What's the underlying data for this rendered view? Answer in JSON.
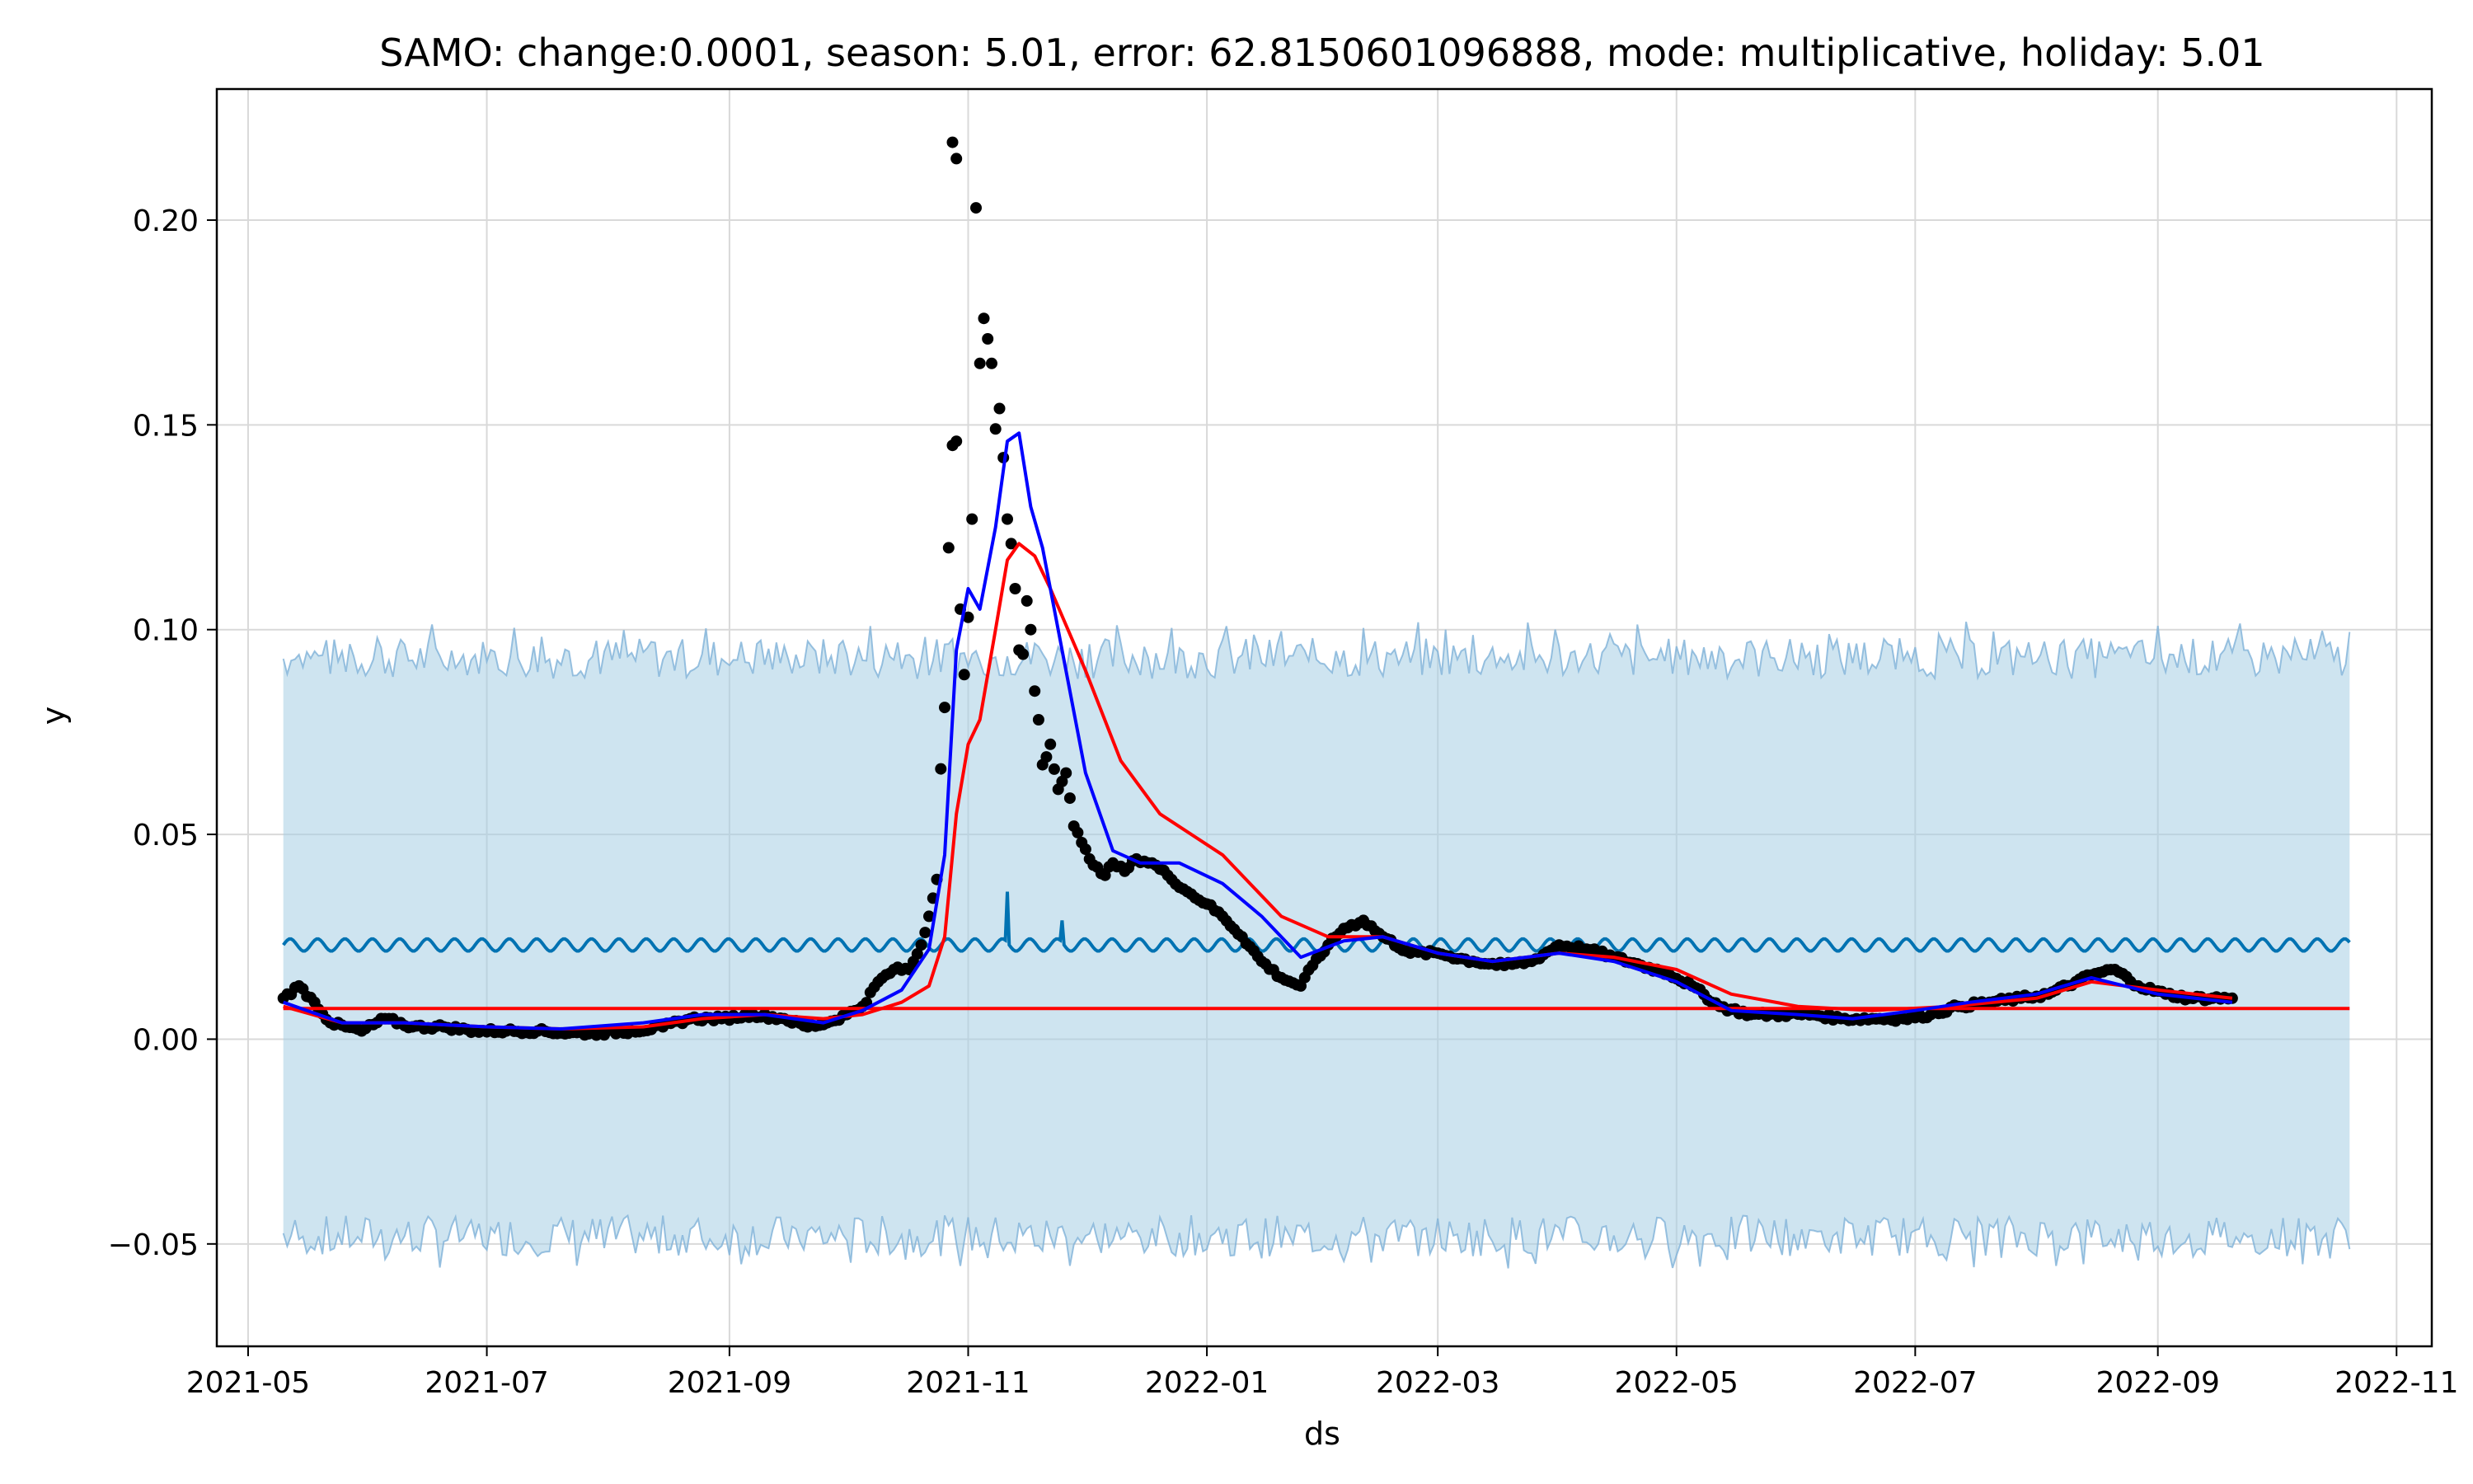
{
  "chart_data": {
    "type": "line",
    "title": "SAMO: change:0.0001, season: 5.01, error: 62.8150601096888, mode: multiplicative, holiday: 5.01",
    "xlabel": "ds",
    "ylabel": "y",
    "xlim": [
      "2021-04-23",
      "2022-11-10"
    ],
    "ylim": [
      -0.075,
      0.232
    ],
    "grid": true,
    "x_ticks": [
      "2021-05",
      "2021-07",
      "2021-09",
      "2021-11",
      "2022-01",
      "2022-03",
      "2022-05",
      "2022-07",
      "2022-09",
      "2022-11"
    ],
    "y_ticks": [
      -0.05,
      0.0,
      0.05,
      0.1,
      0.15,
      0.2
    ],
    "y_tick_labels": [
      "−0.05",
      "0.00",
      "0.05",
      "0.10",
      "0.15",
      "0.20"
    ],
    "colors": {
      "observed": "#000000",
      "fit_blue": "#0000ff",
      "trend_red": "#ff0000",
      "seasonal": "#0072b2",
      "interval_fill": "#a6cee3",
      "interval_edge": "#7fb2d8",
      "grid": "#d9d9d9"
    },
    "series": [
      {
        "role": "uncertainty_interval",
        "x": [
          "2021-05-10",
          "2022-10-20"
        ],
        "upper_base": 0.093,
        "lower_base": -0.048
      },
      {
        "role": "seasonal_component",
        "x_range": [
          "2021-05-10",
          "2022-10-20"
        ],
        "base": 0.023,
        "amplitude": 0.0015,
        "period_days": 7,
        "spikes": [
          {
            "x": "2021-11-11",
            "y": 0.036
          },
          {
            "x": "2021-11-25",
            "y": 0.029
          }
        ]
      },
      {
        "role": "baseline_trend",
        "x": [
          "2021-05-10",
          "2022-10-20"
        ],
        "y": [
          0.0075,
          0.0075
        ]
      },
      {
        "role": "blue_fit",
        "x": [
          "2021-05-10",
          "2021-05-25",
          "2021-06-10",
          "2021-07-01",
          "2021-07-20",
          "2021-08-10",
          "2021-08-25",
          "2021-09-10",
          "2021-09-25",
          "2021-10-05",
          "2021-10-15",
          "2021-10-22",
          "2021-10-26",
          "2021-10-29",
          "2021-11-01",
          "2021-11-04",
          "2021-11-08",
          "2021-11-11",
          "2021-11-14",
          "2021-11-17",
          "2021-11-20",
          "2021-11-25",
          "2021-12-01",
          "2021-12-08",
          "2021-12-15",
          "2021-12-25",
          "2022-01-05",
          "2022-01-15",
          "2022-01-25",
          "2022-02-05",
          "2022-02-15",
          "2022-03-01",
          "2022-03-15",
          "2022-04-01",
          "2022-04-15",
          "2022-05-01",
          "2022-05-15",
          "2022-06-01",
          "2022-06-15",
          "2022-07-01",
          "2022-07-15",
          "2022-08-01",
          "2022-08-15",
          "2022-09-01",
          "2022-09-20"
        ],
        "y": [
          0.009,
          0.004,
          0.004,
          0.003,
          0.0025,
          0.004,
          0.006,
          0.006,
          0.004,
          0.007,
          0.012,
          0.022,
          0.045,
          0.095,
          0.11,
          0.105,
          0.125,
          0.146,
          0.148,
          0.13,
          0.12,
          0.095,
          0.065,
          0.046,
          0.043,
          0.043,
          0.038,
          0.03,
          0.02,
          0.024,
          0.025,
          0.021,
          0.019,
          0.021,
          0.019,
          0.014,
          0.007,
          0.006,
          0.005,
          0.007,
          0.009,
          0.011,
          0.015,
          0.011,
          0.009
        ]
      },
      {
        "role": "red_trend_fit",
        "x": [
          "2021-05-10",
          "2021-05-25",
          "2021-06-10",
          "2021-07-01",
          "2021-07-20",
          "2021-08-10",
          "2021-08-25",
          "2021-09-10",
          "2021-09-25",
          "2021-10-05",
          "2021-10-15",
          "2021-10-22",
          "2021-10-26",
          "2021-10-29",
          "2021-11-01",
          "2021-11-04",
          "2021-11-08",
          "2021-11-11",
          "2021-11-14",
          "2021-11-18",
          "2021-11-22",
          "2021-12-01",
          "2021-12-10",
          "2021-12-20",
          "2022-01-05",
          "2022-01-20",
          "2022-02-01",
          "2022-02-15",
          "2022-03-01",
          "2022-03-15",
          "2022-04-01",
          "2022-04-15",
          "2022-05-01",
          "2022-05-15",
          "2022-06-01",
          "2022-06-20",
          "2022-07-10",
          "2022-08-01",
          "2022-08-15",
          "2022-09-01",
          "2022-09-20"
        ],
        "y": [
          0.008,
          0.004,
          0.004,
          0.003,
          0.0025,
          0.003,
          0.005,
          0.006,
          0.005,
          0.006,
          0.009,
          0.013,
          0.025,
          0.055,
          0.072,
          0.078,
          0.1,
          0.117,
          0.121,
          0.118,
          0.11,
          0.09,
          0.068,
          0.055,
          0.045,
          0.03,
          0.025,
          0.025,
          0.021,
          0.019,
          0.021,
          0.02,
          0.017,
          0.011,
          0.008,
          0.007,
          0.008,
          0.01,
          0.014,
          0.012,
          0.01
        ]
      },
      {
        "role": "observed_points",
        "x": [
          "2021-05-10",
          "2021-05-14",
          "2021-05-18",
          "2021-05-22",
          "2021-05-26",
          "2021-05-30",
          "2021-06-05",
          "2021-06-12",
          "2021-06-20",
          "2021-06-28",
          "2021-07-06",
          "2021-07-14",
          "2021-07-22",
          "2021-07-30",
          "2021-08-07",
          "2021-08-15",
          "2021-08-22",
          "2021-08-30",
          "2021-09-07",
          "2021-09-15",
          "2021-09-21",
          "2021-09-26",
          "2021-10-01",
          "2021-10-05",
          "2021-10-09",
          "2021-10-13",
          "2021-10-17",
          "2021-10-20",
          "2021-10-22",
          "2021-10-24",
          "2021-10-25",
          "2021-10-26",
          "2021-10-27",
          "2021-10-28",
          "2021-10-29",
          "2021-10-30",
          "2021-10-31",
          "2021-11-01",
          "2021-11-02",
          "2021-11-03",
          "2021-11-04",
          "2021-11-05",
          "2021-11-06",
          "2021-11-07",
          "2021-11-08",
          "2021-11-09",
          "2021-11-10",
          "2021-11-11",
          "2021-11-12",
          "2021-11-13",
          "2021-11-14",
          "2021-11-15",
          "2021-11-16",
          "2021-11-17",
          "2021-11-18",
          "2021-11-19",
          "2021-11-20",
          "2021-11-22",
          "2021-11-24",
          "2021-11-26",
          "2021-11-28",
          "2021-11-30",
          "2021-12-02",
          "2021-12-04",
          "2021-12-06",
          "2021-12-08",
          "2021-12-11",
          "2021-12-14",
          "2021-12-18",
          "2021-12-22",
          "2021-12-27",
          "2022-01-01",
          "2022-01-05",
          "2022-01-10",
          "2022-01-15",
          "2022-01-20",
          "2022-01-25",
          "2022-01-28",
          "2022-02-01",
          "2022-02-05",
          "2022-02-10",
          "2022-02-15",
          "2022-02-22",
          "2022-03-01",
          "2022-03-10",
          "2022-03-18",
          "2022-03-25",
          "2022-04-01",
          "2022-04-08",
          "2022-04-15",
          "2022-04-22",
          "2022-04-29",
          "2022-05-05",
          "2022-05-12",
          "2022-05-20",
          "2022-05-28",
          "2022-06-05",
          "2022-06-12",
          "2022-06-20",
          "2022-06-28",
          "2022-07-05",
          "2022-07-12",
          "2022-07-20",
          "2022-07-28",
          "2022-08-04",
          "2022-08-11",
          "2022-08-16",
          "2022-08-21",
          "2022-08-27",
          "2022-09-03",
          "2022-09-09",
          "2022-09-15",
          "2022-09-20"
        ],
        "y": [
          0.01,
          0.013,
          0.009,
          0.004,
          0.003,
          0.002,
          0.005,
          0.003,
          0.003,
          0.002,
          0.002,
          0.002,
          0.0015,
          0.0015,
          0.002,
          0.003,
          0.005,
          0.005,
          0.006,
          0.005,
          0.003,
          0.004,
          0.006,
          0.008,
          0.014,
          0.017,
          0.017,
          0.023,
          0.03,
          0.039,
          0.066,
          0.081,
          0.12,
          0.145,
          0.146,
          0.105,
          0.089,
          0.103,
          0.127,
          0.203,
          0.165,
          0.176,
          0.171,
          0.165,
          0.149,
          0.154,
          0.142,
          0.127,
          0.121,
          0.11,
          0.095,
          0.094,
          0.107,
          0.1,
          0.085,
          0.078,
          0.067,
          0.072,
          0.061,
          0.065,
          0.052,
          0.048,
          0.044,
          0.042,
          0.04,
          0.043,
          0.041,
          0.044,
          0.043,
          0.04,
          0.036,
          0.033,
          0.03,
          0.025,
          0.019,
          0.015,
          0.013,
          0.018,
          0.023,
          0.027,
          0.029,
          0.025,
          0.021,
          0.021,
          0.019,
          0.018,
          0.019,
          0.023,
          0.022,
          0.02,
          0.018,
          0.016,
          0.013,
          0.008,
          0.006,
          0.006,
          0.006,
          0.005,
          0.005,
          0.005,
          0.006,
          0.008,
          0.009,
          0.01,
          0.011,
          0.014,
          0.016,
          0.017,
          0.013,
          0.011,
          0.01,
          0.01,
          0.01
        ]
      }
    ],
    "extra_points": [
      {
        "x": "2021-10-28",
        "y": 0.219
      },
      {
        "x": "2021-10-29",
        "y": 0.215
      }
    ]
  }
}
